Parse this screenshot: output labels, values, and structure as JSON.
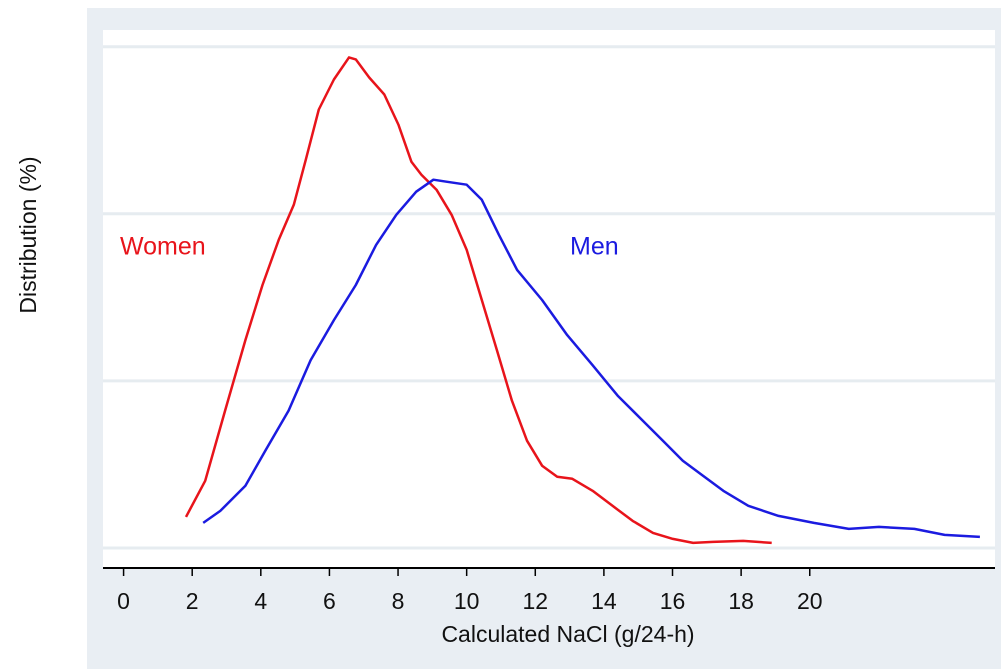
{
  "chart_data": {
    "type": "line",
    "y_label": "Distribution (%)",
    "x_label": "Calculated NaCl (g/24-h)",
    "xlim": [
      -0.6,
      25.4
    ],
    "xticks": [
      0,
      2,
      4,
      6,
      8,
      10,
      12,
      14,
      16,
      18,
      20
    ],
    "ylim": [
      -0.6,
      15.5
    ],
    "ygrid": [
      0,
      5,
      10,
      15
    ],
    "grid": true,
    "series": [
      {
        "name": "Women",
        "color": "#e8141b",
        "x": [
          1.82,
          2.38,
          2.96,
          3.55,
          4.05,
          4.52,
          4.96,
          5.31,
          5.69,
          6.13,
          6.57,
          6.77,
          7.16,
          7.6,
          8.01,
          8.39,
          8.68,
          9.12,
          9.56,
          10.0,
          10.44,
          10.88,
          11.32,
          11.76,
          12.2,
          12.64,
          13.08,
          13.67,
          14.25,
          14.84,
          15.43,
          16.01,
          16.6,
          17.18,
          18.06,
          18.89
        ],
        "values": [
          0.93,
          2.01,
          4.11,
          6.22,
          7.87,
          9.22,
          10.27,
          11.62,
          13.12,
          14.02,
          14.68,
          14.62,
          14.08,
          13.57,
          12.67,
          11.56,
          11.17,
          10.72,
          9.97,
          8.92,
          7.42,
          5.92,
          4.41,
          3.21,
          2.46,
          2.13,
          2.07,
          1.71,
          1.26,
          0.81,
          0.45,
          0.27,
          0.15,
          0.18,
          0.21,
          0.15
        ]
      },
      {
        "name": "Men",
        "color": "#1b1be0",
        "x": [
          2.32,
          2.82,
          3.55,
          4.13,
          4.81,
          5.45,
          6.13,
          6.77,
          7.36,
          7.95,
          8.53,
          9.03,
          9.41,
          10.0,
          10.44,
          10.94,
          11.47,
          12.2,
          12.93,
          13.67,
          14.4,
          15.13,
          15.72,
          16.3,
          16.89,
          17.48,
          18.21,
          19.09,
          20.12,
          21.14,
          22.02,
          23.05,
          23.93,
          24.96
        ],
        "values": [
          0.75,
          1.11,
          1.86,
          2.91,
          4.11,
          5.62,
          6.82,
          7.87,
          9.07,
          9.97,
          10.66,
          11.02,
          10.96,
          10.87,
          10.42,
          9.37,
          8.32,
          7.42,
          6.37,
          5.47,
          4.56,
          3.81,
          3.21,
          2.61,
          2.16,
          1.71,
          1.26,
          0.96,
          0.75,
          0.57,
          0.63,
          0.57,
          0.39,
          0.33
        ]
      }
    ]
  }
}
